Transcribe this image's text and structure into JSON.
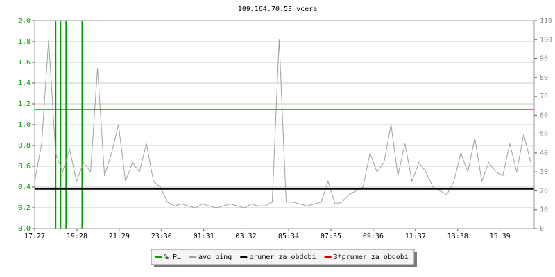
{
  "chart_data": {
    "type": "line",
    "title": "109.164.70.53 vcera",
    "xlim": [
      "17:27",
      "17:17"
    ],
    "xticks": [
      "17:27",
      "19:28",
      "21:29",
      "23:30",
      "01:31",
      "03:32",
      "05:34",
      "07:35",
      "09:36",
      "11:37",
      "13:38",
      "15:39"
    ],
    "ylim": [
      0,
      2
    ],
    "yticks": [
      {
        "value": 0,
        "label": "0.0"
      },
      {
        "value": 0.2,
        "label": "0.2"
      },
      {
        "value": 0.4,
        "label": "0.4"
      },
      {
        "value": 0.6,
        "label": "0.6"
      },
      {
        "value": 0.8,
        "label": "0.8"
      },
      {
        "value": 1,
        "label": "1.0"
      },
      {
        "value": 1.2,
        "label": "1.2"
      },
      {
        "value": 1.4,
        "label": "1.4"
      },
      {
        "value": 1.6,
        "label": "1.6"
      },
      {
        "value": 1.8,
        "label": "1.8"
      },
      {
        "value": 2,
        "label": "2.0"
      }
    ],
    "y2lim": [
      0,
      110
    ],
    "y2ticks": [
      0,
      10,
      20,
      30,
      40,
      50,
      60,
      70,
      80,
      90,
      100,
      110
    ],
    "grid": true,
    "series": [
      {
        "name": "% PL",
        "color": "#00a000",
        "style": "bars",
        "x": [
          "18:27",
          "18:41",
          "18:57",
          "19:43"
        ],
        "values": [
          2,
          2,
          2,
          2
        ]
      },
      {
        "name": "avg ping",
        "color": "#a0a0a0",
        "axis": "y2",
        "style": "line",
        "x": [
          "17:27",
          "17:47",
          "18:07",
          "18:27",
          "18:47",
          "19:07",
          "19:27",
          "19:47",
          "20:07",
          "20:27",
          "20:47",
          "21:07",
          "21:27",
          "21:47",
          "22:07",
          "22:27",
          "22:47",
          "23:07",
          "23:27",
          "23:47",
          "00:07",
          "00:27",
          "00:47",
          "01:07",
          "01:27",
          "01:47",
          "02:07",
          "02:27",
          "02:47",
          "03:07",
          "03:27",
          "03:47",
          "04:07",
          "04:27",
          "04:47",
          "05:07",
          "05:27",
          "05:47",
          "06:07",
          "06:27",
          "06:47",
          "07:07",
          "07:27",
          "07:47",
          "08:07",
          "08:27",
          "08:47",
          "09:07",
          "09:27",
          "09:47",
          "10:07",
          "10:27",
          "10:47",
          "11:07",
          "11:27",
          "11:47",
          "12:07",
          "12:27",
          "12:47",
          "13:07",
          "13:27",
          "13:47",
          "14:07",
          "14:27",
          "14:47",
          "15:07",
          "15:27",
          "15:47",
          "16:07",
          "16:27",
          "16:47",
          "17:07"
        ],
        "values": [
          25,
          45,
          100,
          40,
          30,
          42,
          25,
          35,
          30,
          85,
          28,
          40,
          55,
          25,
          35,
          30,
          45,
          25,
          22,
          14,
          12,
          13,
          12,
          11,
          13,
          12,
          11,
          12,
          13,
          12,
          11,
          13,
          12,
          12,
          14,
          100,
          14,
          14,
          13,
          12,
          13,
          14,
          25,
          13,
          14,
          18,
          20,
          22,
          40,
          30,
          35,
          55,
          28,
          45,
          25,
          35,
          30,
          22,
          20,
          18,
          25,
          40,
          30,
          48,
          25,
          35,
          30,
          28,
          45,
          30,
          50,
          35
        ]
      },
      {
        "name": "prumer za obdobi",
        "color": "#000000",
        "axis": "y2",
        "style": "hline",
        "value": 21
      },
      {
        "name": "3*prumer za obdobi",
        "color": "#cc0000",
        "axis": "y2",
        "style": "hline",
        "value": 63
      }
    ]
  }
}
